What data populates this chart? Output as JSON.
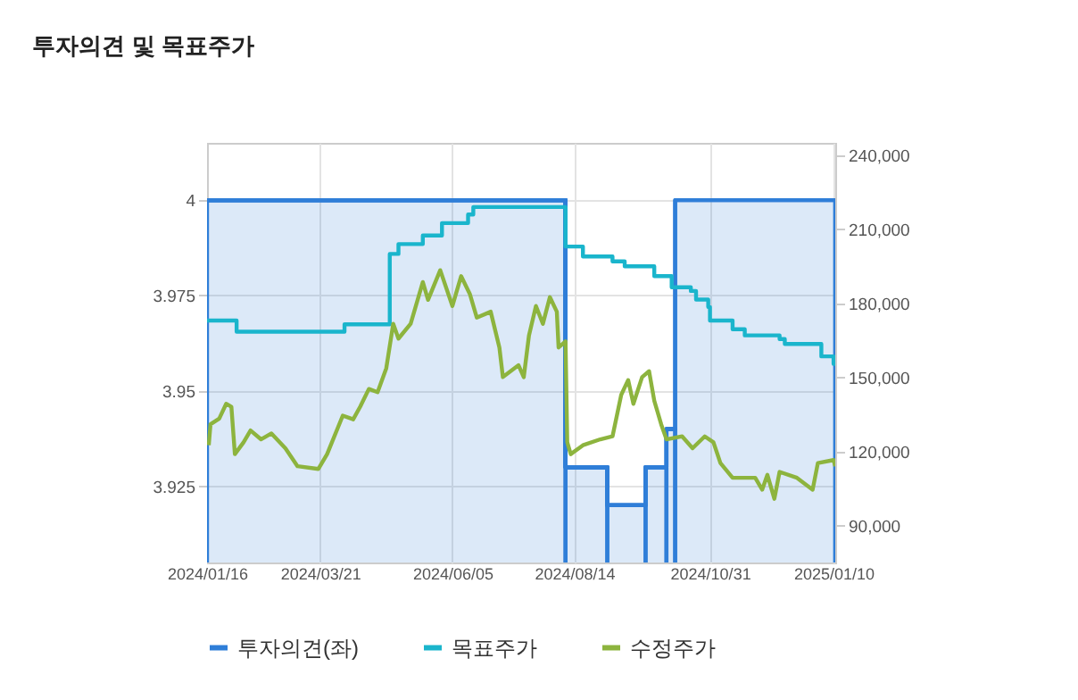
{
  "chart_data": {
    "type": "step",
    "title": "투자의견 및 목표주가",
    "xlim": [
      "2024-01-16",
      "2025-01-11"
    ],
    "xticks": [
      {
        "value": "2024-01-16",
        "label": "2024/01/16"
      },
      {
        "value": "2024-03-21",
        "label": "2024/03/21"
      },
      {
        "value": "2024-06-05",
        "label": "2024/06/05"
      },
      {
        "value": "2024-08-14",
        "label": "2024/08/14"
      },
      {
        "value": "2024-10-31",
        "label": "2024/10/31"
      },
      {
        "value": "2025-01-10",
        "label": "2025/01/10"
      }
    ],
    "ylim": [
      3.905,
      4.015
    ],
    "yticks": [
      3.925,
      3.95,
      3.975,
      4
    ],
    "y2lim": [
      75000,
      245000
    ],
    "y2ticks": [
      {
        "value": 90000,
        "label": "90,000"
      },
      {
        "value": 120000,
        "label": "120,000"
      },
      {
        "value": 150000,
        "label": "150,000"
      },
      {
        "value": 180000,
        "label": "180,000"
      },
      {
        "value": 210000,
        "label": "210,000"
      },
      {
        "value": 240000,
        "label": "240,000"
      }
    ],
    "grid": true,
    "legend": "bottom",
    "series": [
      {
        "name": "투자의견(좌)",
        "type": "area",
        "color": "#2f7ed8",
        "x": [
          "2024-01-16",
          "2024-08-09",
          "2024-09-02",
          "2024-09-24",
          "2024-10-06",
          "2024-10-11",
          "2025-01-11"
        ],
        "values": [
          4,
          3.93,
          3.92,
          3.93,
          3.94,
          4,
          4
        ]
      },
      {
        "name": "목표주가",
        "axis": "y2",
        "color": "#1ab5cc",
        "x": [
          "2024-01-16",
          "2024-02-02",
          "2024-04-04",
          "2024-04-30",
          "2024-05-05",
          "2024-05-19",
          "2024-05-30",
          "2024-06-14",
          "2024-06-17",
          "2024-08-09",
          "2024-08-19",
          "2024-09-05",
          "2024-09-12",
          "2024-09-29",
          "2024-10-09",
          "2024-10-20",
          "2024-10-23",
          "2024-10-30",
          "2024-10-31",
          "2024-11-13",
          "2024-11-20",
          "2024-12-10",
          "2024-12-13",
          "2025-01-03",
          "2025-01-10",
          "2025-01-11"
        ],
        "values": [
          173000,
          168500,
          171500,
          200000,
          204000,
          207500,
          212500,
          216000,
          219000,
          203000,
          199000,
          197000,
          195000,
          191000,
          186500,
          185000,
          181500,
          178500,
          173000,
          169500,
          167000,
          165500,
          163500,
          158500,
          155500,
          155500
        ]
      },
      {
        "name": "수정주가",
        "type": "line",
        "axis": "y2",
        "color": "#8db43e",
        "x": [
          "2024-01-17",
          "2024-01-18",
          "2024-01-23",
          "2024-01-27",
          "2024-01-30",
          "2024-02-01",
          "2024-02-06",
          "2024-02-10",
          "2024-02-16",
          "2024-02-22",
          "2024-03-01",
          "2024-03-08",
          "2024-03-20",
          "2024-03-25",
          "2024-04-03",
          "2024-04-09",
          "2024-04-13",
          "2024-04-18",
          "2024-04-23",
          "2024-04-28",
          "2024-05-02",
          "2024-05-05",
          "2024-05-12",
          "2024-05-19",
          "2024-05-22",
          "2024-05-29",
          "2024-06-05",
          "2024-06-10",
          "2024-06-15",
          "2024-06-19",
          "2024-06-27",
          "2024-07-02",
          "2024-07-04",
          "2024-07-13",
          "2024-07-16",
          "2024-07-19",
          "2024-07-23",
          "2024-07-27",
          "2024-07-31",
          "2024-08-04",
          "2024-08-05",
          "2024-08-09",
          "2024-08-10",
          "2024-08-12",
          "2024-08-19",
          "2024-08-29",
          "2024-09-05",
          "2024-09-10",
          "2024-09-14",
          "2024-09-17",
          "2024-09-22",
          "2024-09-26",
          "2024-09-29",
          "2024-10-03",
          "2024-10-06",
          "2024-10-15",
          "2024-10-21",
          "2024-10-28",
          "2024-11-02",
          "2024-11-06",
          "2024-11-13",
          "2024-11-26",
          "2024-11-30",
          "2024-12-03",
          "2024-12-07",
          "2024-12-10",
          "2024-12-20",
          "2024-12-29",
          "2025-01-01",
          "2025-01-10",
          "2025-01-11"
        ],
        "values": [
          122500,
          131000,
          133300,
          139300,
          138100,
          118900,
          123700,
          128500,
          124900,
          127300,
          121300,
          114000,
          112900,
          118900,
          134500,
          133000,
          138100,
          145300,
          144000,
          153700,
          171700,
          165700,
          171700,
          188600,
          181400,
          193400,
          178900,
          191000,
          183800,
          174200,
          176600,
          162100,
          150100,
          154900,
          150100,
          167000,
          178900,
          171700,
          182500,
          176600,
          162100,
          164600,
          123700,
          118900,
          122500,
          124900,
          126100,
          142900,
          148900,
          139300,
          150100,
          152500,
          140500,
          130900,
          124900,
          126100,
          121300,
          126100,
          123700,
          115300,
          109300,
          109300,
          104500,
          110500,
          100800,
          111700,
          109300,
          104500,
          115300,
          116500,
          114000
        ]
      }
    ]
  }
}
